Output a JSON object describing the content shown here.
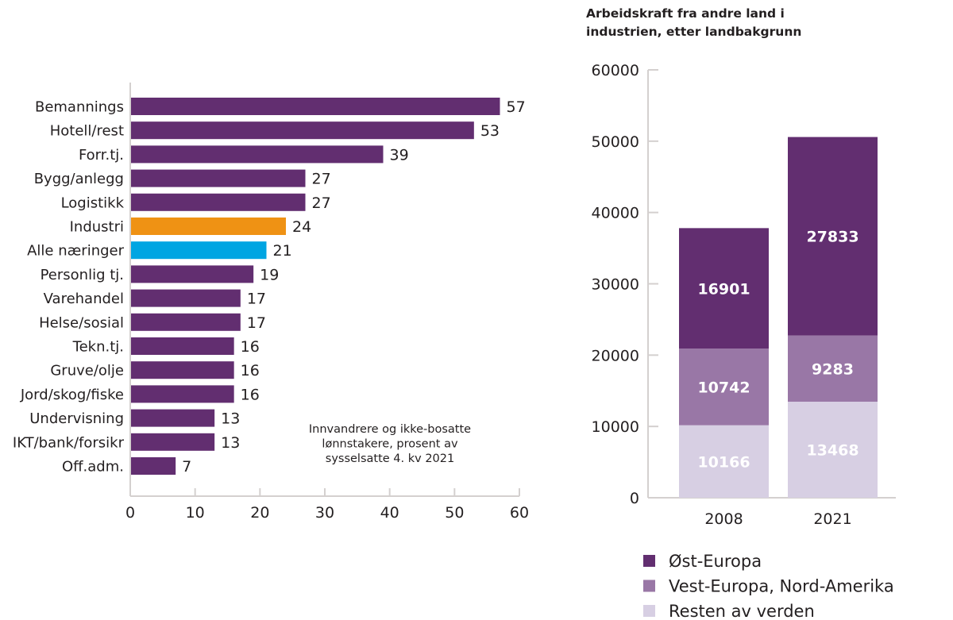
{
  "chart_data": [
    {
      "type": "bar",
      "orientation": "horizontal",
      "title": "",
      "note": [
        "Innvandrere og ikke-bosatte",
        "lønnstakere, prosent av",
        "sysselsatte 4. kv 2021"
      ],
      "xlabel": "",
      "ylabel": "",
      "xlim": [
        0,
        60
      ],
      "xticks": [
        0,
        10,
        20,
        30,
        40,
        50,
        60
      ],
      "grid": false,
      "categories": [
        "Bemannings",
        "Hotell/rest",
        "Forr.tj.",
        "Bygg/anlegg",
        "Logistikk",
        "Industri",
        "Alle næringer",
        "Personlig tj.",
        "Varehandel",
        "Helse/sosial",
        "Tekn.tj.",
        "Gruve/olje",
        "Jord/skog/fiske",
        "Undervisning",
        "IKT/bank/forsikr",
        "Off.adm."
      ],
      "values": [
        57,
        53,
        39,
        27,
        27,
        24,
        21,
        19,
        17,
        17,
        16,
        16,
        16,
        13,
        13,
        7
      ],
      "colors": {
        "default": "#622e70",
        "Industri": "#ef9214",
        "Alle næringer": "#00a5e2"
      }
    },
    {
      "type": "bar",
      "stacked": true,
      "title": "Arbeidskraft fra andre land i industrien, etter landbakgrunn",
      "title_lines": [
        "Arbeidskraft fra andre land i",
        "industrien, etter landbakgrunn"
      ],
      "xlabel": "",
      "ylabel": "",
      "ylim": [
        0,
        60000
      ],
      "yticks": [
        0,
        10000,
        20000,
        30000,
        40000,
        50000,
        60000
      ],
      "grid": false,
      "categories": [
        "2008",
        "2021"
      ],
      "series": [
        {
          "name": "Resten av verden",
          "values": [
            10166,
            13468
          ],
          "color": "#d7cfe3"
        },
        {
          "name": "Vest-Europa, Nord-Amerika",
          "values": [
            10742,
            9283
          ],
          "color": "#9977a6"
        },
        {
          "name": "Øst-Europa",
          "values": [
            16901,
            27833
          ],
          "color": "#622e70"
        }
      ],
      "legend": {
        "placement": "bottom",
        "order": [
          "Øst-Europa",
          "Vest-Europa, Nord-Amerika",
          "Resten av verden"
        ]
      }
    }
  ]
}
